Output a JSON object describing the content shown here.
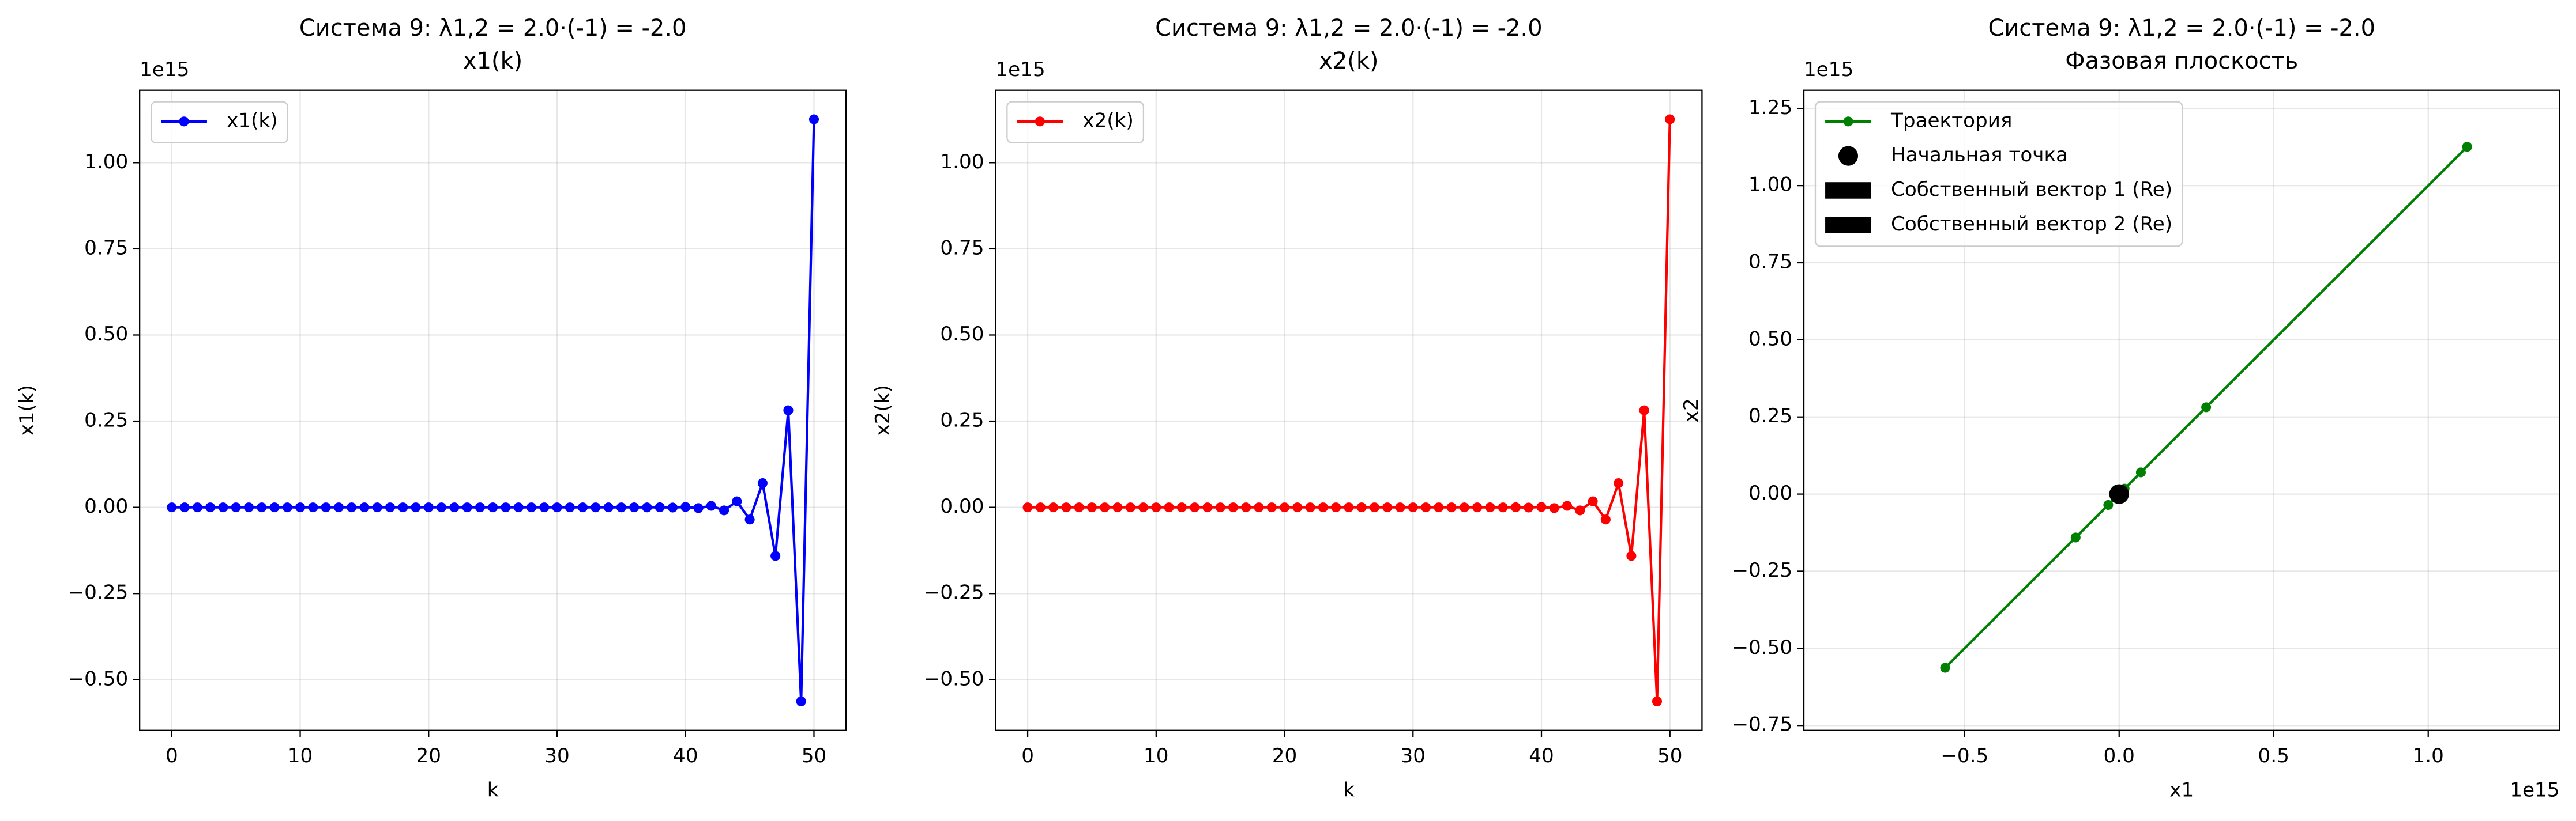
{
  "chart_data": [
    {
      "type": "line",
      "title": "Система 9: λ1,2 = 2.0·(-1) = -2.0",
      "subtitle": "x1(k)",
      "xlabel": "k",
      "ylabel": "x1(k)",
      "y_offset_label": "1e15",
      "x": [
        0,
        1,
        2,
        3,
        4,
        5,
        6,
        7,
        8,
        9,
        10,
        11,
        12,
        13,
        14,
        15,
        16,
        17,
        18,
        19,
        20,
        21,
        22,
        23,
        24,
        25,
        26,
        27,
        28,
        29,
        30,
        31,
        32,
        33,
        34,
        35,
        36,
        37,
        38,
        39,
        40,
        41,
        42,
        43,
        44,
        45,
        46,
        47,
        48,
        49,
        50
      ],
      "series": [
        {
          "name": "x1(k)",
          "color": "#0000ff",
          "values": [
            1e-15,
            -2e-15,
            4e-15,
            -8e-15,
            1.6e-14,
            -3.2e-14,
            6.4e-14,
            -1.28e-13,
            2.56e-13,
            -5.12e-13,
            1.024e-12,
            -2.048e-12,
            4.096e-12,
            -8.192e-12,
            1.6384e-11,
            -3.2768e-11,
            6.5536e-11,
            -1.31072e-10,
            2.62144e-10,
            -5.24288e-10,
            1.048576e-09,
            -2.097152e-09,
            4.194304e-09,
            -8.388608e-09,
            1.6777216e-08,
            -3.3554432e-08,
            6.7108864e-08,
            -1.34217728e-07,
            2.68435456e-07,
            -5.36870912e-07,
            1.073741824e-06,
            -2.147483648e-06,
            4.294967296e-06,
            -8.589934592e-06,
            1.7179869184e-05,
            -3.4359738368e-05,
            6.8719476736e-05,
            -0.000137438953472,
            0.000274877906944,
            -0.000549755813888,
            0.001099511627776,
            -0.002199023255552,
            0.004398046511104,
            -0.008796093022208,
            0.017592186044416,
            -0.035184372088832,
            0.070368744177664,
            -0.140737488355328,
            0.281474976710656,
            -0.562949953421312,
            1.125899906842624
          ]
        }
      ],
      "xlim": [
        -2.5,
        52.5
      ],
      "xticks": [
        0,
        10,
        20,
        30,
        40,
        50
      ],
      "ylim": [
        -0.647,
        1.21
      ],
      "yticks": [
        {
          "value": -0.5,
          "label": "−0.50"
        },
        {
          "value": -0.25,
          "label": "−0.25"
        },
        {
          "value": 0,
          "label": "0.00"
        },
        0.25,
        {
          "value": 0.5,
          "label": "0.50"
        },
        0.75,
        {
          "value": 1,
          "label": "1.00"
        }
      ],
      "grid": true,
      "legend": "upper left"
    },
    {
      "type": "line",
      "title": "Система 9: λ1,2 = 2.0·(-1) = -2.0",
      "subtitle": "x2(k)",
      "xlabel": "k",
      "ylabel": "x2(k)",
      "y_offset_label": "1e15",
      "x": [
        0,
        1,
        2,
        3,
        4,
        5,
        6,
        7,
        8,
        9,
        10,
        11,
        12,
        13,
        14,
        15,
        16,
        17,
        18,
        19,
        20,
        21,
        22,
        23,
        24,
        25,
        26,
        27,
        28,
        29,
        30,
        31,
        32,
        33,
        34,
        35,
        36,
        37,
        38,
        39,
        40,
        41,
        42,
        43,
        44,
        45,
        46,
        47,
        48,
        49,
        50
      ],
      "series": [
        {
          "name": "x2(k)",
          "color": "#ff0000",
          "values": [
            1e-15,
            -2e-15,
            4e-15,
            -8e-15,
            1.6e-14,
            -3.2e-14,
            6.4e-14,
            -1.28e-13,
            2.56e-13,
            -5.12e-13,
            1.024e-12,
            -2.048e-12,
            4.096e-12,
            -8.192e-12,
            1.6384e-11,
            -3.2768e-11,
            6.5536e-11,
            -1.31072e-10,
            2.62144e-10,
            -5.24288e-10,
            1.048576e-09,
            -2.097152e-09,
            4.194304e-09,
            -8.388608e-09,
            1.6777216e-08,
            -3.3554432e-08,
            6.7108864e-08,
            -1.34217728e-07,
            2.68435456e-07,
            -5.36870912e-07,
            1.073741824e-06,
            -2.147483648e-06,
            4.294967296e-06,
            -8.589934592e-06,
            1.7179869184e-05,
            -3.4359738368e-05,
            6.8719476736e-05,
            -0.000137438953472,
            0.000274877906944,
            -0.000549755813888,
            0.001099511627776,
            -0.002199023255552,
            0.004398046511104,
            -0.008796093022208,
            0.017592186044416,
            -0.035184372088832,
            0.070368744177664,
            -0.140737488355328,
            0.281474976710656,
            -0.562949953421312,
            1.125899906842624
          ]
        }
      ],
      "xlim": [
        -2.5,
        52.5
      ],
      "xticks": [
        0,
        10,
        20,
        30,
        40,
        50
      ],
      "ylim": [
        -0.647,
        1.21
      ],
      "yticks": [
        {
          "value": -0.5,
          "label": "−0.50"
        },
        {
          "value": -0.25,
          "label": "−0.25"
        },
        {
          "value": 0,
          "label": "0.00"
        },
        0.25,
        {
          "value": 0.5,
          "label": "0.50"
        },
        0.75,
        {
          "value": 1,
          "label": "1.00"
        }
      ],
      "grid": true,
      "legend": "upper left"
    },
    {
      "type": "line",
      "title": "Система 9: λ1,2 = 2.0·(-1) = -2.0",
      "subtitle": "Фазовая плоскость",
      "xlabel": "x1",
      "ylabel": "x2",
      "y_offset_label": "1e15",
      "x_offset_label": "1e15",
      "x": [
        1e-15,
        -2e-15,
        4e-15,
        -8e-15,
        1.6e-14,
        -3.2e-14,
        6.4e-14,
        -1.28e-13,
        2.56e-13,
        -5.12e-13,
        1.024e-12,
        -2.048e-12,
        4.096e-12,
        -8.192e-12,
        1.6384e-11,
        -3.2768e-11,
        6.5536e-11,
        -1.31072e-10,
        2.62144e-10,
        -5.24288e-10,
        1.048576e-09,
        -2.097152e-09,
        4.194304e-09,
        -8.388608e-09,
        1.6777216e-08,
        -3.3554432e-08,
        6.7108864e-08,
        -1.34217728e-07,
        2.68435456e-07,
        -5.36870912e-07,
        1.073741824e-06,
        -2.147483648e-06,
        4.294967296e-06,
        -8.589934592e-06,
        1.7179869184e-05,
        -3.4359738368e-05,
        6.8719476736e-05,
        -0.000137438953472,
        0.000274877906944,
        -0.000549755813888,
        0.001099511627776,
        -0.002199023255552,
        0.004398046511104,
        -0.008796093022208,
        0.017592186044416,
        -0.035184372088832,
        0.070368744177664,
        -0.140737488355328,
        0.281474976710656,
        -0.562949953421312,
        1.125899906842624
      ],
      "series": [
        {
          "name": "Траектория",
          "color": "#008000",
          "values": [
            1e-15,
            -2e-15,
            4e-15,
            -8e-15,
            1.6e-14,
            -3.2e-14,
            6.4e-14,
            -1.28e-13,
            2.56e-13,
            -5.12e-13,
            1.024e-12,
            -2.048e-12,
            4.096e-12,
            -8.192e-12,
            1.6384e-11,
            -3.2768e-11,
            6.5536e-11,
            -1.31072e-10,
            2.62144e-10,
            -5.24288e-10,
            1.048576e-09,
            -2.097152e-09,
            4.194304e-09,
            -8.388608e-09,
            1.6777216e-08,
            -3.3554432e-08,
            6.7108864e-08,
            -1.34217728e-07,
            2.68435456e-07,
            -5.36870912e-07,
            1.073741824e-06,
            -2.147483648e-06,
            4.294967296e-06,
            -8.589934592e-06,
            1.7179869184e-05,
            -3.4359738368e-05,
            6.8719476736e-05,
            -0.000137438953472,
            0.000274877906944,
            -0.000549755813888,
            0.001099511627776,
            -0.002199023255552,
            0.004398046511104,
            -0.008796093022208,
            0.017592186044416,
            -0.035184372088832,
            0.070368744177664,
            -0.140737488355328,
            0.281474976710656,
            -0.562949953421312,
            1.125899906842624
          ]
        }
      ],
      "points": [
        {
          "name": "Начальная точка",
          "color": "#000000",
          "x": 1e-15,
          "y": 1e-15
        }
      ],
      "arrows": [
        {
          "name": "Собственный вектор 1 (Re)",
          "color": "#000000"
        },
        {
          "name": "Собственный вектор 2 (Re)",
          "color": "#000000"
        }
      ],
      "xlim": [
        -1.02,
        1.425
      ],
      "xticks": [
        {
          "value": -0.5,
          "label": "−0.5"
        },
        {
          "value": 0,
          "label": "0.0"
        },
        0.5,
        {
          "value": 1,
          "label": "1.0"
        }
      ],
      "ylim": [
        -0.766,
        1.309
      ],
      "yticks": [
        {
          "value": -0.75,
          "label": "−0.75"
        },
        {
          "value": -0.5,
          "label": "−0.50"
        },
        {
          "value": -0.25,
          "label": "−0.25"
        },
        {
          "value": 0,
          "label": "0.00"
        },
        0.25,
        {
          "value": 0.5,
          "label": "0.50"
        },
        0.75,
        {
          "value": 1,
          "label": "1.00"
        },
        1.25
      ],
      "grid": true,
      "legend": "upper left"
    }
  ]
}
